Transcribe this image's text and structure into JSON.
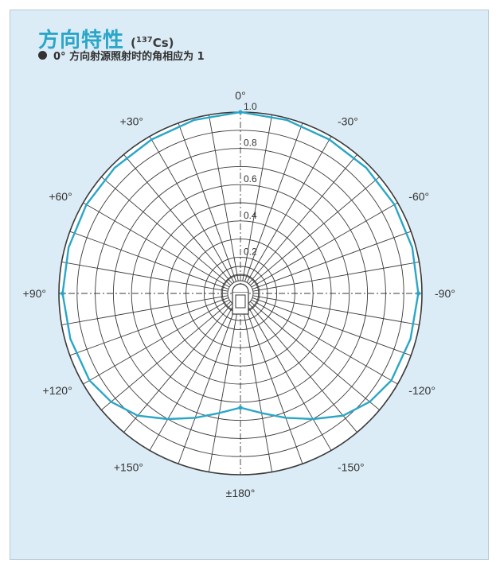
{
  "header": {
    "title": "方向特性",
    "source_open": "(",
    "source_sup": "137",
    "source_rest": "Cs)",
    "subtitle": "0° 方向射源照射时的角相应为 1"
  },
  "colors": {
    "panel_bg": "#dcecf6",
    "accent": "#2aa6c8",
    "grid": "#3a3a3a"
  },
  "chart_data": {
    "type": "polar",
    "title": "方向特性",
    "radial_ticks": [
      "0.2",
      "0.4",
      "0.6",
      "0.8",
      "1.0"
    ],
    "radial_range": [
      0,
      1.0
    ],
    "angle_ticks": [
      {
        "angle": 0,
        "label": "0°"
      },
      {
        "angle": -30,
        "label": "-30°"
      },
      {
        "angle": -60,
        "label": "-60°"
      },
      {
        "angle": -90,
        "label": "-90°"
      },
      {
        "angle": -120,
        "label": "-120°"
      },
      {
        "angle": -150,
        "label": "-150°"
      },
      {
        "angle": 180,
        "label": "±180°"
      },
      {
        "angle": 150,
        "label": "+150°"
      },
      {
        "angle": 120,
        "label": "+120°"
      },
      {
        "angle": 90,
        "label": "+90°"
      },
      {
        "angle": 60,
        "label": "+60°"
      },
      {
        "angle": 30,
        "label": "+30°"
      }
    ],
    "series": [
      {
        "color": "#2aa6c8",
        "points": [
          {
            "angle": 0,
            "r": 1.0
          },
          {
            "angle": 15,
            "r": 0.99
          },
          {
            "angle": 30,
            "r": 0.98
          },
          {
            "angle": 45,
            "r": 0.98
          },
          {
            "angle": 60,
            "r": 0.98
          },
          {
            "angle": 75,
            "r": 0.98
          },
          {
            "angle": 90,
            "r": 0.98
          },
          {
            "angle": 105,
            "r": 0.97
          },
          {
            "angle": 120,
            "r": 0.96
          },
          {
            "angle": 130,
            "r": 0.93
          },
          {
            "angle": 140,
            "r": 0.88
          },
          {
            "angle": 150,
            "r": 0.8
          },
          {
            "angle": 160,
            "r": 0.73
          },
          {
            "angle": 170,
            "r": 0.67
          },
          {
            "angle": 180,
            "r": 0.63
          },
          {
            "angle": 190,
            "r": 0.67
          },
          {
            "angle": 200,
            "r": 0.73
          },
          {
            "angle": 210,
            "r": 0.8
          },
          {
            "angle": 220,
            "r": 0.88
          },
          {
            "angle": 230,
            "r": 0.93
          },
          {
            "angle": 240,
            "r": 0.96
          },
          {
            "angle": 255,
            "r": 0.97
          },
          {
            "angle": 270,
            "r": 0.98
          },
          {
            "angle": 285,
            "r": 0.98
          },
          {
            "angle": 300,
            "r": 0.98
          },
          {
            "angle": 315,
            "r": 0.98
          },
          {
            "angle": 330,
            "r": 0.98
          },
          {
            "angle": 345,
            "r": 0.99
          },
          {
            "angle": 360,
            "r": 1.0
          }
        ]
      }
    ]
  }
}
